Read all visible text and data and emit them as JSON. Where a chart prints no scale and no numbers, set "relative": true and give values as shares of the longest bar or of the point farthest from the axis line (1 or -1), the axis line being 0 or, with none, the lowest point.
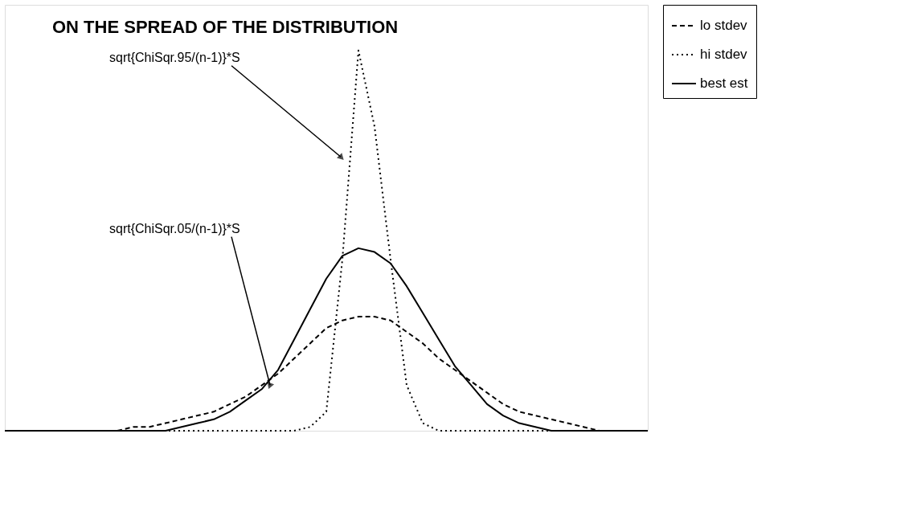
{
  "chart_data": {
    "type": "line",
    "title": "ON THE SPREAD OF THE DISTRIBUTION",
    "relative": true,
    "categories": [
      null,
      null,
      null,
      null,
      null,
      null,
      null,
      null,
      null,
      null,
      null,
      null,
      null,
      null,
      null,
      null,
      null,
      null,
      null,
      null,
      null,
      null,
      null,
      null,
      null,
      null,
      null,
      null,
      null,
      null,
      null,
      null,
      null,
      null,
      null,
      null,
      null,
      null,
      null,
      null,
      null
    ],
    "series": [
      {
        "name": "lo stdev",
        "color": "#000000",
        "line_style": "dashed",
        "values": [
          0,
          0,
          0,
          0,
          0,
          0,
          0,
          0,
          0.01,
          0.01,
          0.02,
          0.03,
          0.04,
          0.05,
          0.07,
          0.09,
          0.12,
          0.15,
          0.19,
          0.23,
          0.27,
          0.29,
          0.3,
          0.3,
          0.29,
          0.26,
          0.23,
          0.19,
          0.16,
          0.13,
          0.1,
          0.07,
          0.05,
          0.04,
          0.03,
          0.02,
          0.01,
          0,
          0,
          0,
          0
        ]
      },
      {
        "name": "hi stdev",
        "color": "#000000",
        "line_style": "dotted",
        "values": [
          0,
          0,
          0,
          0,
          0,
          0,
          0,
          0,
          0,
          0,
          0,
          0,
          0,
          0,
          0,
          0,
          0,
          0,
          0,
          0.01,
          0.05,
          0.45,
          1,
          0.8,
          0.45,
          0.12,
          0.02,
          0,
          0,
          0,
          0,
          0,
          0,
          0,
          0,
          0,
          0,
          0,
          0,
          0,
          0
        ]
      },
      {
        "name": "best est",
        "color": "#000000",
        "line_style": "solid",
        "values": [
          0,
          0,
          0,
          0,
          0,
          0,
          0,
          0,
          0,
          0,
          0,
          0.01,
          0.02,
          0.03,
          0.05,
          0.08,
          0.11,
          0.16,
          0.24,
          0.32,
          0.4,
          0.46,
          0.48,
          0.47,
          0.44,
          0.38,
          0.31,
          0.24,
          0.17,
          0.12,
          0.07,
          0.04,
          0.02,
          0.01,
          0,
          0,
          0,
          0,
          0,
          0,
          0
        ]
      }
    ],
    "annotations": [
      "sqrt{ChiSqr.95/(n-1)}*S",
      "sqrt{ChiSqr.05/(n-1)}*S"
    ],
    "legend": "right"
  }
}
